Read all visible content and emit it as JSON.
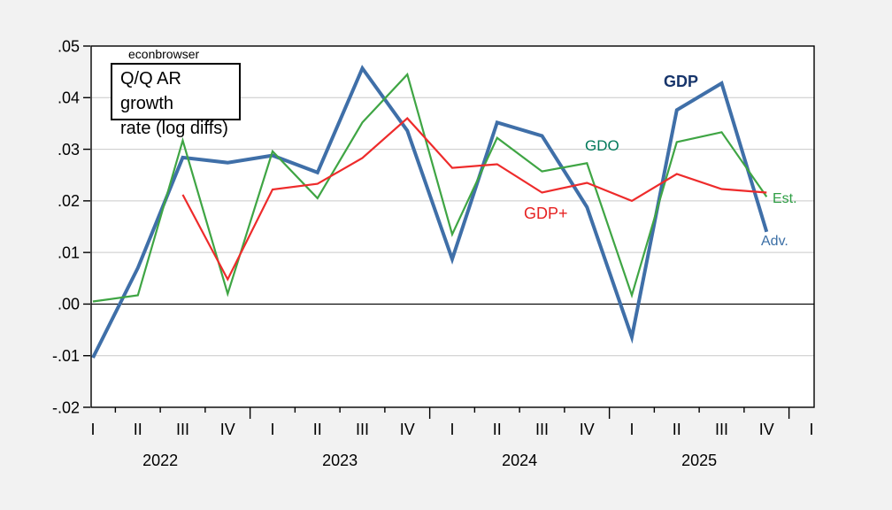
{
  "annotations": {
    "watermark": "econbrowser",
    "note": "Q/Q AR growth\nrate (log diffs)",
    "gdp": {
      "text": "GDP",
      "color": "#17356b"
    },
    "gdo": {
      "text": "GDO",
      "color": "#00795a"
    },
    "gdp_plus": {
      "text": "GDP+",
      "color": "#e62222"
    },
    "est": {
      "text": "Est.",
      "color": "#2e9e44"
    },
    "adv": {
      "text": "Adv.",
      "color": "#3a6ea5"
    }
  },
  "chart_data": {
    "type": "line",
    "title": "Q/Q AR growth rate (log diffs)",
    "categories": [
      "2022Q1",
      "2022Q2",
      "2022Q3",
      "2022Q4",
      "2023Q1",
      "2023Q2",
      "2023Q3",
      "2023Q4",
      "2024Q1",
      "2024Q2",
      "2024Q3",
      "2024Q4",
      "2025Q1",
      "2025Q2",
      "2025Q3",
      "2025Q4"
    ],
    "series": [
      {
        "name": "GDP",
        "color": "#3f6fa8",
        "width": 4,
        "values": [
          -0.0104,
          0.007,
          0.0284,
          0.0274,
          0.0288,
          0.0255,
          0.0457,
          0.0336,
          0.0087,
          0.0352,
          0.0326,
          0.0188,
          -0.0064,
          0.0376,
          0.0428,
          0.014
        ]
      },
      {
        "name": "GDO",
        "color": "#3fa544",
        "width": 2.2,
        "values": [
          0.0005,
          0.0017,
          0.0317,
          0.002,
          0.0296,
          0.0205,
          0.0352,
          0.0445,
          0.0135,
          0.0322,
          0.0257,
          0.0273,
          0.0017,
          0.0314,
          0.0333,
          0.0208
        ]
      },
      {
        "name": "GDP+",
        "color": "#ee2b2b",
        "width": 2.2,
        "values": [
          null,
          null,
          0.0212,
          0.0048,
          0.0222,
          0.0233,
          0.0283,
          0.036,
          0.0264,
          0.0271,
          0.0216,
          0.0235,
          0.02,
          0.0252,
          0.0223,
          0.0216
        ]
      }
    ],
    "x_tick_labels": [
      "I",
      "II",
      "III",
      "IV",
      "I",
      "II",
      "III",
      "IV",
      "I",
      "II",
      "III",
      "IV",
      "I",
      "II",
      "III",
      "IV",
      "I"
    ],
    "years": [
      {
        "label": "2022",
        "center_index": 1.5
      },
      {
        "label": "2023",
        "center_index": 5.5
      },
      {
        "label": "2024",
        "center_index": 9.5
      },
      {
        "label": "2025",
        "center_index": 13.5
      }
    ],
    "ylim": [
      -0.02,
      0.05
    ],
    "ytick_values": [
      0.05,
      0.04,
      0.03,
      0.02,
      0.01,
      0,
      -0.01,
      -0.02
    ],
    "ytick_labels": [
      ".05",
      ".04",
      ".03",
      ".02",
      ".01",
      ".00",
      "-.01",
      "-.02"
    ],
    "grid_values": [
      0.04,
      0.03,
      0.02,
      0.01,
      -0.01
    ],
    "zero_line_value": 0,
    "grid": true,
    "legend": "inline-labels",
    "colors": {
      "plot_background": "#ffffff",
      "figure_background": "#f2f2f2",
      "gridline": "#c9c9c9",
      "frame": "#000000",
      "zero_line": "#000000"
    }
  }
}
